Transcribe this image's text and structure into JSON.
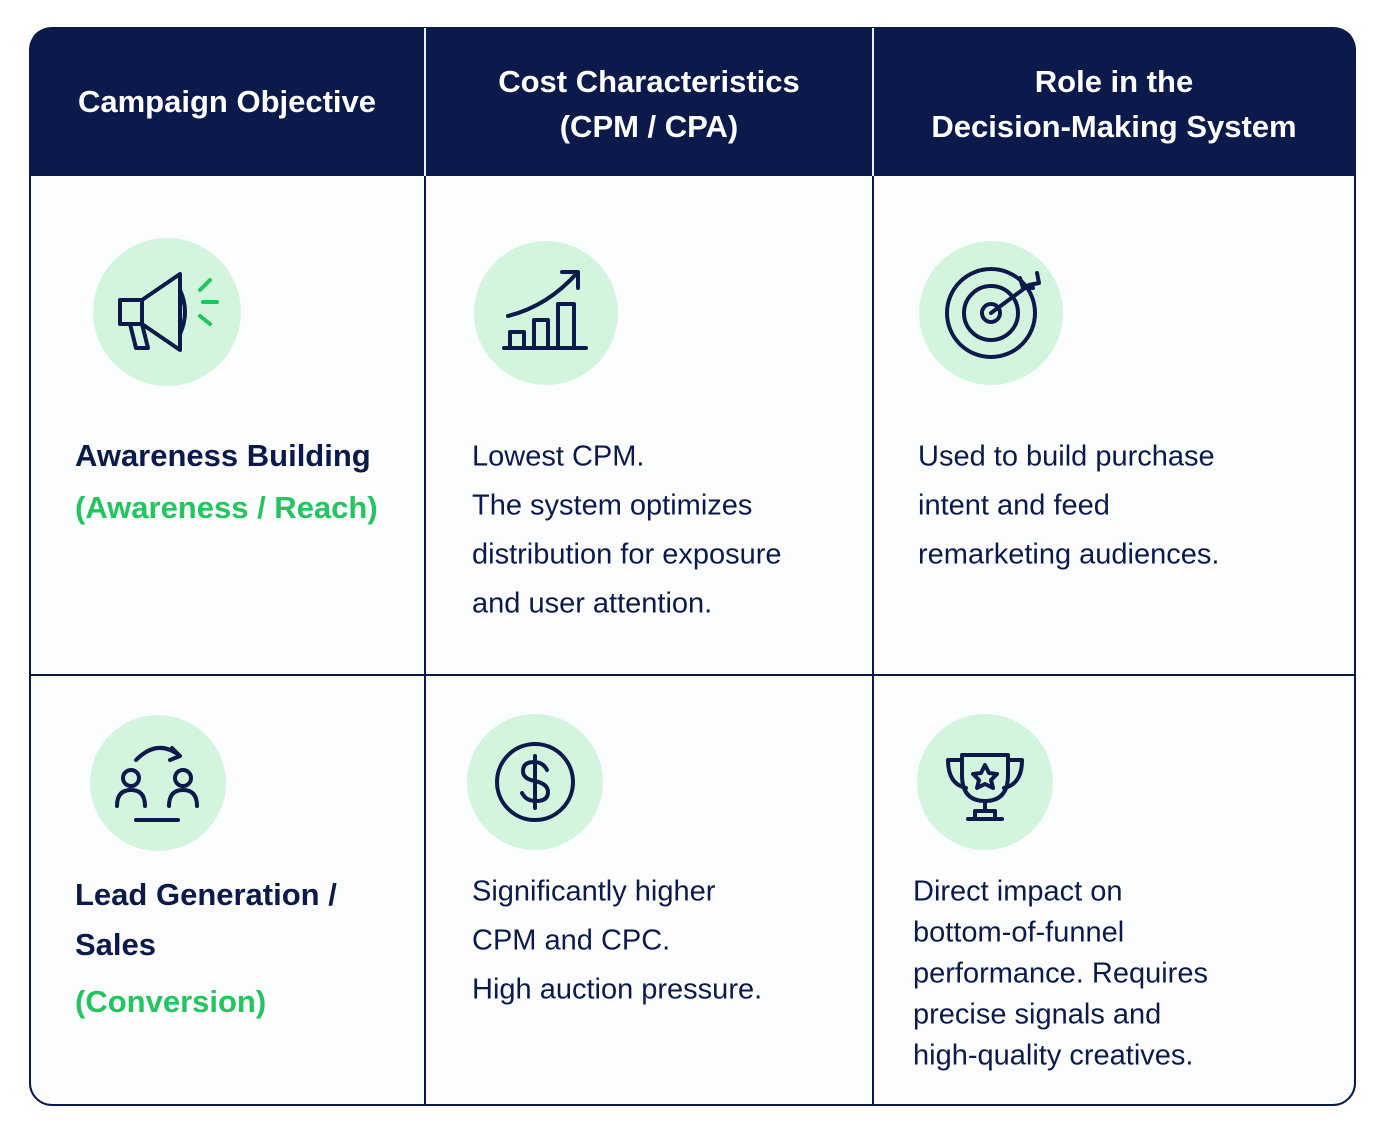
{
  "header": {
    "columns": [
      [
        "Campaign Objective"
      ],
      [
        "Cost Characteristics",
        "(CPM / CPA)"
      ],
      [
        "Role in the",
        "Decision-Making System"
      ]
    ]
  },
  "rows": [
    {
      "objective": [
        "Awareness Building"
      ],
      "objective_type": [
        "(Awareness / Reach)"
      ],
      "cost": [
        "Lowest CPM.",
        "The system optimizes",
        "distribution for exposure",
        "and user attention."
      ],
      "role": [
        "Used to build purchase",
        "intent and feed",
        "remarketing audiences."
      ]
    },
    {
      "objective": [
        "Lead Generation /",
        "Sales"
      ],
      "objective_type": [
        "(Conversion)"
      ],
      "cost": [
        "Significantly higher",
        "CPM and CPC.",
        "High auction pressure."
      ],
      "role": [
        "Direct impact on",
        "bottom-of-funnel",
        "performance. Requires",
        "precise signals and",
        "high-quality creatives."
      ]
    }
  ]
}
